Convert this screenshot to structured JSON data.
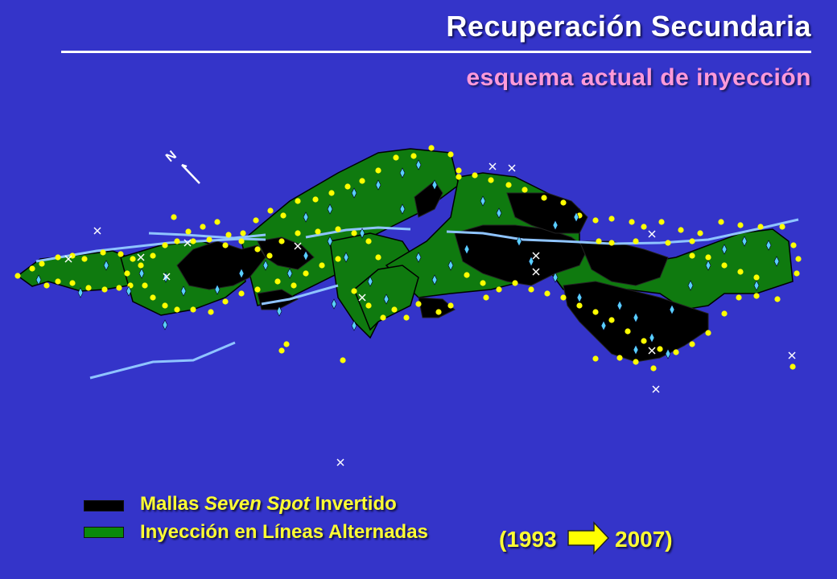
{
  "header": {
    "title": "Recuperación Secundaria",
    "subtitle": "esquema actual de inyección"
  },
  "map": {
    "north_label": "N",
    "colors": {
      "background": "#3434c9",
      "seven_spot": "#000000",
      "alternating": "#0f7a0f",
      "well": "#ffff00",
      "fault": "#8fc4ff"
    }
  },
  "legend": {
    "item1_prefix": "Mallas ",
    "item1_italic": "Seven Spot",
    "item1_suffix": " Invertido",
    "item2": "Inyección en Líneas Alternadas",
    "period_start": "(1993",
    "period_end": "2007)"
  }
}
